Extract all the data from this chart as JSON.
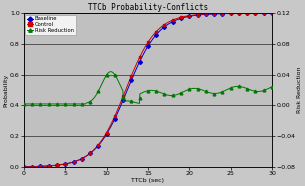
{
  "title": "TTCb Probability-Conflicts",
  "xlabel": "TTCb (sec)",
  "ylabel_left": "Probability",
  "ylabel_right": "Risk Reduction",
  "xlim": [
    0,
    30
  ],
  "ylim_left": [
    0,
    1.0
  ],
  "ylim_right": [
    -0.08,
    0.12
  ],
  "yticks_left": [
    0.0,
    0.2,
    0.4,
    0.6,
    0.8,
    1.0
  ],
  "yticks_right": [
    -0.08,
    -0.04,
    0.0,
    0.04,
    0.08,
    0.12
  ],
  "xticks": [
    0,
    5,
    10,
    15,
    20,
    25,
    30
  ],
  "background_color": "#c0c0c0",
  "fig_background": "#c8c8c8",
  "baseline_color": "#0000cc",
  "control_color": "#cc0000",
  "risk_color": "#007700",
  "baseline_label": "Baseline",
  "control_label": "Control",
  "risk_label": "Risk Reduction"
}
